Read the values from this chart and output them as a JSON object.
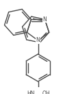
{
  "bg_color": "#ffffff",
  "line_color": "#4a4a4a",
  "line_width": 1.0,
  "figsize": [
    1.11,
    1.37
  ],
  "dpi": 100,
  "N_pyrrole": "N",
  "N_pyridine": "N",
  "HN_label": "HN",
  "OH_label": "OH",
  "font_size": 5.5,
  "xlim": [
    -6,
    6
  ],
  "ylim": [
    -7.5,
    6.5
  ]
}
